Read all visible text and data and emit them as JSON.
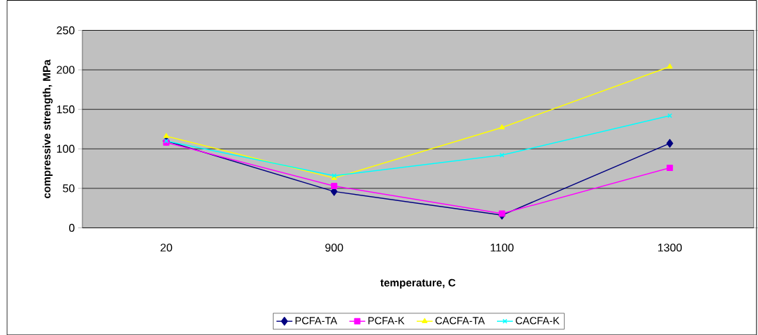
{
  "chart_data": {
    "type": "line",
    "xlabel": "temperature, C",
    "ylabel": "compressive strength, MPa",
    "categories": [
      "20",
      "900",
      "1100",
      "1300"
    ],
    "series": [
      {
        "name": "PCFA-TA",
        "color": "#000080",
        "marker": "diamond",
        "values": [
          110,
          46,
          16,
          107
        ]
      },
      {
        "name": "PCFA-K",
        "color": "#ff00ff",
        "marker": "square",
        "values": [
          108,
          53,
          18,
          76
        ]
      },
      {
        "name": "CACFA-TA",
        "color": "#ffff00",
        "marker": "triangle",
        "values": [
          116,
          63,
          127,
          204
        ]
      },
      {
        "name": "CACFA-K",
        "color": "#00ffff",
        "marker": "cross",
        "values": [
          110,
          66,
          92,
          142
        ]
      }
    ],
    "ylim": [
      0,
      250
    ],
    "yticks": [
      0,
      50,
      100,
      150,
      200,
      250
    ],
    "grid": "y",
    "legend": "bottom",
    "line_style": "solid"
  }
}
